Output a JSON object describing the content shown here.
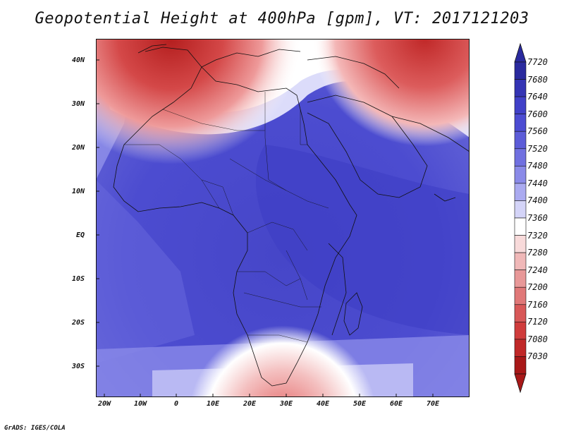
{
  "title": "Geopotential Height at 400hPa [gpm], VT: 2017121203",
  "credit": "GrADS: IGES/COLA",
  "map": {
    "lat_labels": [
      "40N",
      "30N",
      "20N",
      "10N",
      "EQ",
      "10S",
      "20S",
      "30S"
    ],
    "lon_labels": [
      "20W",
      "10W",
      "0",
      "10E",
      "20E",
      "30E",
      "40E",
      "50E",
      "60E",
      "70E"
    ]
  },
  "colorbar": {
    "levels": [
      "7720",
      "7680",
      "7640",
      "7600",
      "7560",
      "7520",
      "7480",
      "7440",
      "7400",
      "7360",
      "7320",
      "7280",
      "7240",
      "7200",
      "7160",
      "7120",
      "7080",
      "7030"
    ],
    "colors": [
      "#2a2a9e",
      "#3434b4",
      "#4040c8",
      "#4c4cd2",
      "#5c5cd8",
      "#7070e0",
      "#8a8ae8",
      "#aaaaf0",
      "#d4d4f8",
      "#ffffff",
      "#f8dada",
      "#f0b8b8",
      "#e89898",
      "#e07878",
      "#d85858",
      "#d03c3c",
      "#c02828",
      "#a81818"
    ]
  }
}
